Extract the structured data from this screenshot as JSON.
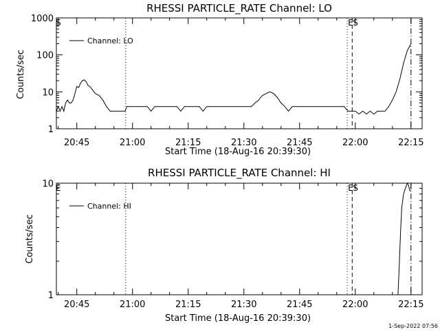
{
  "footer": {
    "timestamp": "1-Sep-2022 07:56"
  },
  "chart_data": [
    {
      "type": "line",
      "title": "RHESSI PARTICLE_RATE Channel: LO",
      "xlabel": "Start Time (18-Aug-16 20:39:30)",
      "ylabel": "Counts/sec",
      "y_scale": "log",
      "ylim": [
        1,
        1000
      ],
      "xlim": [
        "20:39:30",
        "22:18:00"
      ],
      "y_ticks": [
        "1",
        "10",
        "100",
        "1000"
      ],
      "x_ticks": [
        "20:45",
        "21:00",
        "21:15",
        "21:30",
        "21:45",
        "22:00",
        "22:15"
      ],
      "legend": {
        "position": "top-left",
        "entries": [
          "Channel: LO"
        ]
      },
      "series": [
        {
          "name": "Channel: LO",
          "points": [
            [
              "20:39:30",
              3
            ],
            [
              "20:40:00",
              4
            ],
            [
              "20:40:30",
              3
            ],
            [
              "20:41:00",
              4
            ],
            [
              "20:41:30",
              3
            ],
            [
              "20:42:00",
              5
            ],
            [
              "20:42:30",
              6
            ],
            [
              "20:43:00",
              5
            ],
            [
              "20:43:30",
              5
            ],
            [
              "20:44:00",
              6
            ],
            [
              "20:44:30",
              9
            ],
            [
              "20:45:00",
              14
            ],
            [
              "20:45:30",
              13
            ],
            [
              "20:46:00",
              17
            ],
            [
              "20:46:30",
              20
            ],
            [
              "20:47:00",
              21
            ],
            [
              "20:47:30",
              19
            ],
            [
              "20:48:00",
              15
            ],
            [
              "20:48:30",
              14
            ],
            [
              "20:49:00",
              12
            ],
            [
              "20:50:00",
              9
            ],
            [
              "20:51:00",
              8
            ],
            [
              "20:52:00",
              6
            ],
            [
              "20:53:00",
              4
            ],
            [
              "20:54:00",
              3
            ],
            [
              "20:56:00",
              3
            ],
            [
              "20:58:00",
              3
            ],
            [
              "20:58:30",
              4
            ],
            [
              "21:00:00",
              4
            ],
            [
              "21:02:00",
              4
            ],
            [
              "21:03:00",
              4
            ],
            [
              "21:04:00",
              4
            ],
            [
              "21:05:00",
              3
            ],
            [
              "21:06:00",
              4
            ],
            [
              "21:08:00",
              4
            ],
            [
              "21:10:00",
              4
            ],
            [
              "21:12:00",
              4
            ],
            [
              "21:13:00",
              3
            ],
            [
              "21:14:00",
              4
            ],
            [
              "21:16:00",
              4
            ],
            [
              "21:18:00",
              4
            ],
            [
              "21:19:00",
              3
            ],
            [
              "21:20:00",
              4
            ],
            [
              "21:22:00",
              4
            ],
            [
              "21:24:00",
              4
            ],
            [
              "21:26:00",
              4
            ],
            [
              "21:28:00",
              4
            ],
            [
              "21:30:00",
              4
            ],
            [
              "21:32:00",
              4
            ],
            [
              "21:33:00",
              5
            ],
            [
              "21:34:00",
              6
            ],
            [
              "21:35:00",
              8
            ],
            [
              "21:36:00",
              9
            ],
            [
              "21:37:00",
              10
            ],
            [
              "21:38:00",
              9
            ],
            [
              "21:39:00",
              7
            ],
            [
              "21:40:00",
              5
            ],
            [
              "21:41:00",
              4
            ],
            [
              "21:42:00",
              3
            ],
            [
              "21:43:00",
              4
            ],
            [
              "21:45:00",
              4
            ],
            [
              "21:47:00",
              4
            ],
            [
              "21:49:00",
              4
            ],
            [
              "21:51:00",
              4
            ],
            [
              "21:53:00",
              4
            ],
            [
              "21:55:00",
              4
            ],
            [
              "21:57:00",
              4
            ],
            [
              "21:58:00",
              3
            ],
            [
              "22:00:00",
              3
            ],
            [
              "22:01:00",
              2.5
            ],
            [
              "22:02:00",
              3
            ],
            [
              "22:03:00",
              2.5
            ],
            [
              "22:04:00",
              3
            ],
            [
              "22:05:00",
              2.5
            ],
            [
              "22:06:00",
              3
            ],
            [
              "22:07:00",
              3
            ],
            [
              "22:08:00",
              3
            ],
            [
              "22:09:00",
              4
            ],
            [
              "22:10:00",
              6
            ],
            [
              "22:11:00",
              10
            ],
            [
              "22:12:00",
              22
            ],
            [
              "22:13:00",
              60
            ],
            [
              "22:14:00",
              130
            ],
            [
              "22:15:00",
              200
            ]
          ]
        }
      ],
      "annotations": [
        {
          "label": "S",
          "time": "20:39:30"
        },
        {
          "label": "",
          "time": "20:58:10"
        },
        {
          "label": "E",
          "time": "21:57:50"
        },
        {
          "label": "S",
          "time": "21:59:10"
        },
        {
          "label": "",
          "time": "22:15:00"
        }
      ]
    },
    {
      "type": "line",
      "title": "RHESSI PARTICLE_RATE Channel: HI",
      "xlabel": "Start Time (18-Aug-16 20:39:30)",
      "ylabel": "Counts/sec",
      "y_scale": "log",
      "ylim": [
        1,
        10
      ],
      "xlim": [
        "20:39:30",
        "22:18:00"
      ],
      "y_ticks": [
        "1",
        "10"
      ],
      "x_ticks": [
        "20:45",
        "21:00",
        "21:15",
        "21:30",
        "21:45",
        "22:00",
        "22:15"
      ],
      "legend": {
        "position": "top-left",
        "entries": [
          "Channel: HI"
        ]
      },
      "series": [
        {
          "name": "Channel: HI",
          "points": [
            [
              "22:11:30",
              1.0
            ],
            [
              "22:11:50",
              1.8
            ],
            [
              "22:12:10",
              3.5
            ],
            [
              "22:12:30",
              6
            ],
            [
              "22:13:00",
              8
            ],
            [
              "22:13:30",
              9
            ],
            [
              "22:14:00",
              10
            ],
            [
              "22:14:20",
              9.6
            ],
            [
              "22:14:40",
              8.6
            ],
            [
              "22:15:00",
              8.5
            ]
          ]
        }
      ],
      "annotations": [
        {
          "label": "E",
          "time": "20:39:30"
        },
        {
          "label": "",
          "time": "20:58:10"
        },
        {
          "label": "E",
          "time": "21:57:50"
        },
        {
          "label": "S",
          "time": "21:59:10"
        },
        {
          "label": "",
          "time": "22:15:00"
        }
      ]
    }
  ]
}
